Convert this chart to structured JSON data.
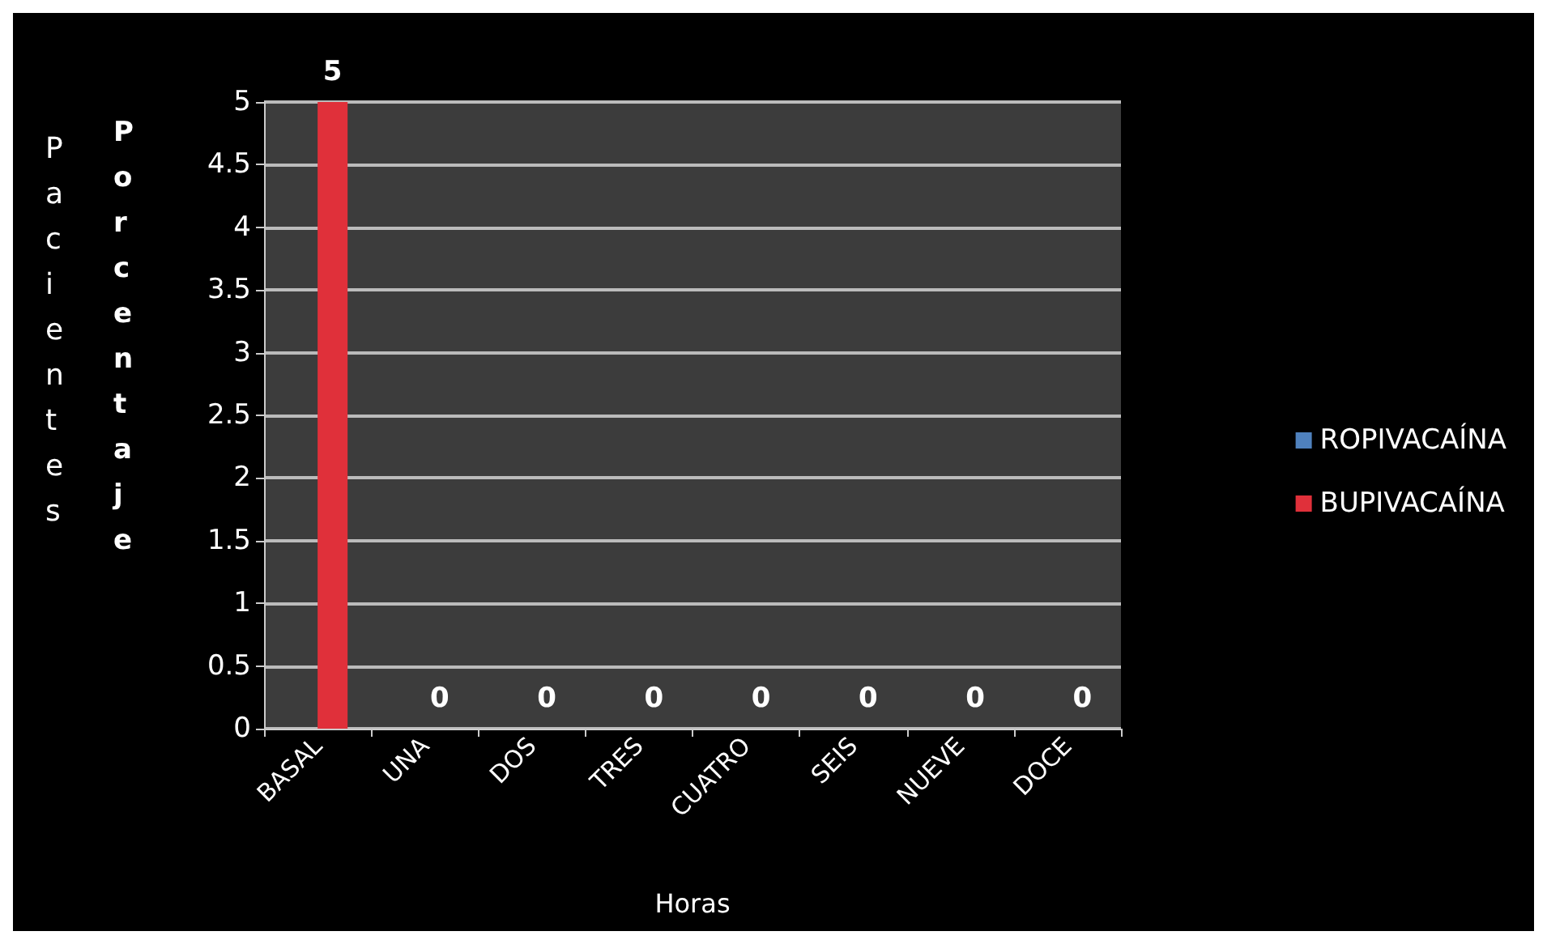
{
  "chart_data": {
    "type": "bar",
    "xlabel": "Horas",
    "ylabel": "Pacientes",
    "annotations": [
      "Porcentaje"
    ],
    "categories": [
      "BASAL",
      "UNA",
      "DOS",
      "TRES",
      "CUATRO",
      "SEIS",
      "NUEVE",
      "DOCE"
    ],
    "series": [
      {
        "name": "ROPIVACAÍNA",
        "color": "#4f81bd",
        "values": [
          0,
          0,
          0,
          0,
          0,
          0,
          0,
          0
        ]
      },
      {
        "name": "BUPIVACAÍNA",
        "color": "#e0303a",
        "values": [
          5,
          0,
          0,
          0,
          0,
          0,
          0,
          0
        ],
        "value_labels": [
          "5",
          "0",
          "0",
          "0",
          "0",
          "0",
          "0",
          "0"
        ]
      }
    ],
    "ylim": [
      0,
      5
    ],
    "yticks": [
      0,
      0.5,
      1,
      1.5,
      2,
      2.5,
      3,
      3.5,
      4,
      4.5,
      5
    ],
    "grid": "y",
    "legend": "right"
  }
}
